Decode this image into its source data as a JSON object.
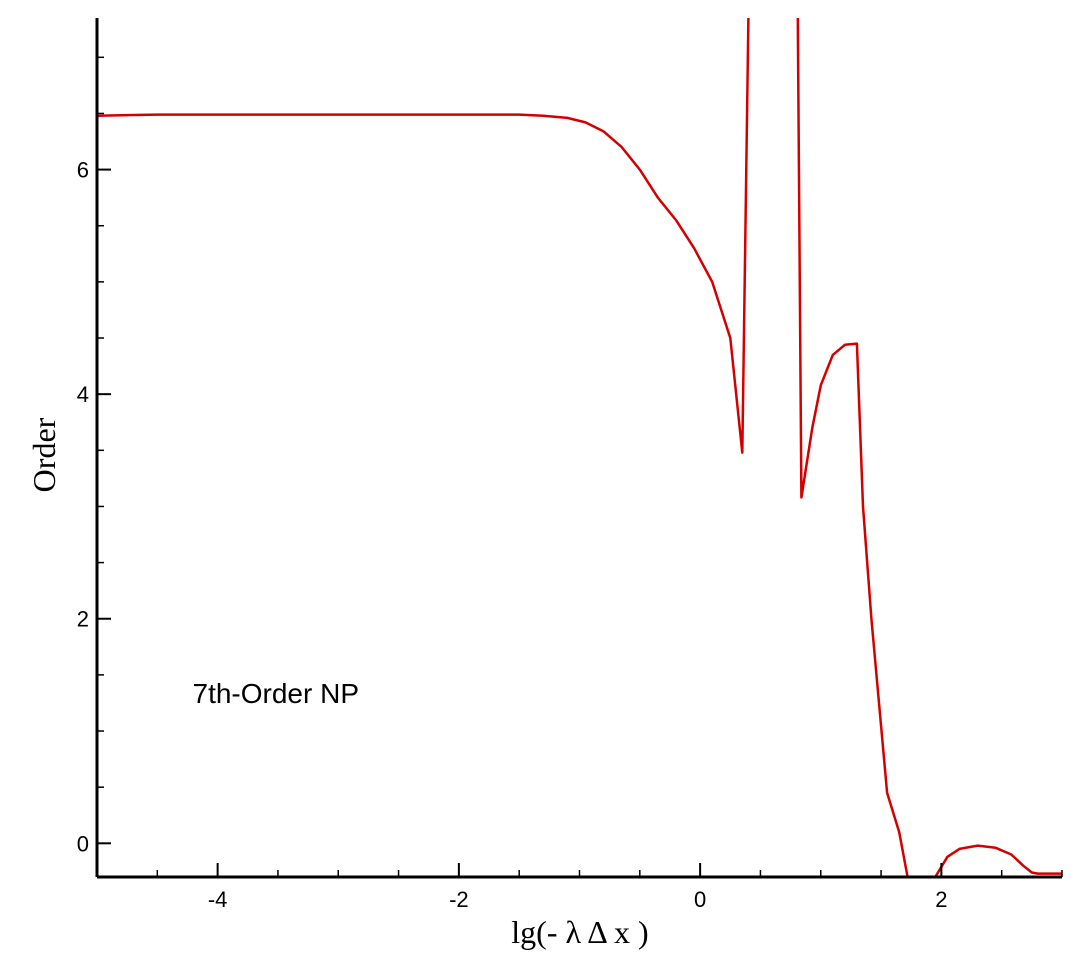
{
  "chart_data": {
    "type": "line",
    "xlabel": "lg(- λ Δ x )",
    "ylabel": "Order",
    "xlim": [
      -5,
      3
    ],
    "ylim": [
      -0.3,
      7.35
    ],
    "grid": false,
    "x_ticks": [
      -4,
      -2,
      0,
      2
    ],
    "y_ticks": [
      0,
      2,
      4,
      6
    ],
    "annotations": [
      {
        "text": "7th-Order NP",
        "x": -4.2,
        "y": 1.25
      }
    ],
    "line_color": "#d40000",
    "series": [
      {
        "segments": [
          [
            [
              -5.0,
              6.48
            ],
            [
              -4.5,
              6.49
            ],
            [
              -3.0,
              6.49
            ],
            [
              -2.0,
              6.49
            ],
            [
              -1.5,
              6.49
            ],
            [
              -1.3,
              6.48
            ],
            [
              -1.1,
              6.46
            ],
            [
              -0.95,
              6.42
            ],
            [
              -0.8,
              6.34
            ],
            [
              -0.65,
              6.2
            ],
            [
              -0.5,
              6.0
            ],
            [
              -0.35,
              5.75
            ],
            [
              -0.2,
              5.55
            ],
            [
              -0.05,
              5.3
            ],
            [
              0.1,
              5.0
            ],
            [
              0.25,
              4.5
            ],
            [
              0.35,
              3.48
            ],
            [
              0.4,
              7.35
            ]
          ],
          [
            [
              0.81,
              7.35
            ],
            [
              0.84,
              3.08
            ],
            [
              0.93,
              3.7
            ],
            [
              1.0,
              4.08
            ],
            [
              1.1,
              4.35
            ],
            [
              1.2,
              4.44
            ],
            [
              1.3,
              4.45
            ],
            [
              1.35,
              3.0
            ],
            [
              1.42,
              2.0
            ],
            [
              1.55,
              0.45
            ],
            [
              1.65,
              0.1
            ],
            [
              1.72,
              -0.3
            ]
          ],
          [
            [
              1.95,
              -0.3
            ],
            [
              2.05,
              -0.12
            ],
            [
              2.15,
              -0.05
            ],
            [
              2.3,
              -0.02
            ],
            [
              2.45,
              -0.04
            ],
            [
              2.58,
              -0.1
            ],
            [
              2.68,
              -0.2
            ],
            [
              2.75,
              -0.26
            ],
            [
              2.8,
              -0.27
            ],
            [
              3.0,
              -0.27
            ]
          ]
        ]
      }
    ]
  }
}
